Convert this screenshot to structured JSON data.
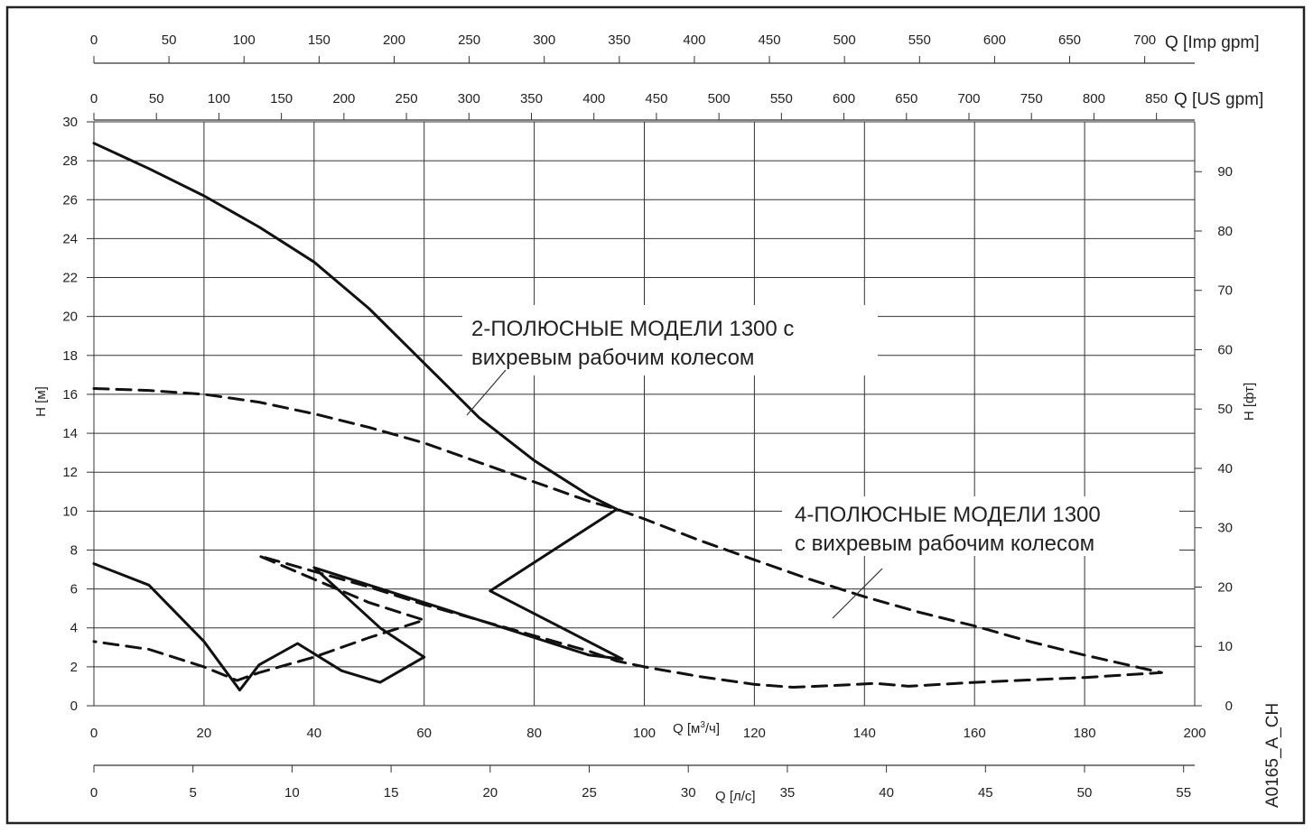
{
  "chart_data": {
    "type": "line",
    "image_code": "A0165_A_CH",
    "x_axis": {
      "label": "Q [м³/ч]",
      "label_main": "Q [м",
      "label_sup": "3",
      "label_tail": "/ч]",
      "range": [
        0,
        200
      ],
      "ticks": [
        0,
        20,
        40,
        60,
        80,
        100,
        120,
        140,
        160,
        180,
        200
      ]
    },
    "x_axis_ls": {
      "label": "Q [л/с]",
      "range": [
        0,
        55.56
      ],
      "ticks": [
        0,
        5,
        10,
        15,
        20,
        25,
        30,
        35,
        40,
        45,
        50,
        55
      ]
    },
    "x_axis_us": {
      "label": "Q [US gpm]",
      "range": [
        0,
        880.6
      ],
      "ticks": [
        0,
        50,
        100,
        150,
        200,
        250,
        300,
        350,
        400,
        450,
        500,
        550,
        600,
        650,
        700,
        750,
        800,
        850
      ]
    },
    "x_axis_imp": {
      "label": "Q [Imp gpm]",
      "range": [
        0,
        733.3
      ],
      "ticks": [
        0,
        50,
        100,
        150,
        200,
        250,
        300,
        350,
        400,
        450,
        500,
        550,
        600,
        650,
        700
      ]
    },
    "y_axis": {
      "label": "H [м]",
      "range": [
        0,
        30
      ],
      "ticks": [
        0,
        2,
        4,
        6,
        8,
        10,
        12,
        14,
        16,
        18,
        20,
        22,
        24,
        26,
        28,
        30
      ]
    },
    "y_axis_ft": {
      "label": "H [фт]",
      "range": [
        0,
        98.4
      ],
      "ticks": [
        0,
        10,
        20,
        30,
        40,
        50,
        60,
        70,
        80,
        90
      ]
    },
    "grid": true,
    "annotations": [
      {
        "lines": [
          "2-ПОЛЮСНЫЕ МОДЕЛИ 1300 с",
          "вихревым рабочим колесом"
        ]
      },
      {
        "lines": [
          "4-ПОЛЮСНЫЕ МОДЕЛИ 1300",
          "с вихревым рабочим колесом"
        ]
      }
    ],
    "series": [
      {
        "style": "solid",
        "points": [
          [
            0,
            28.9
          ],
          [
            10,
            27.6
          ],
          [
            20,
            26.2
          ],
          [
            30,
            24.6
          ],
          [
            40,
            22.8
          ],
          [
            50,
            20.4
          ],
          [
            60,
            17.6
          ],
          [
            70,
            14.8
          ],
          [
            80,
            12.6
          ],
          [
            90,
            10.8
          ],
          [
            95,
            10.1
          ],
          [
            72,
            5.9
          ],
          [
            96,
            2.4
          ],
          [
            90,
            2.6
          ],
          [
            80,
            3.5
          ],
          [
            70,
            4.4
          ],
          [
            60,
            5.3
          ],
          [
            50,
            6.2
          ],
          [
            40,
            7.1
          ],
          [
            52,
            4.0
          ],
          [
            60,
            2.5
          ],
          [
            52,
            1.2
          ],
          [
            45,
            1.8
          ],
          [
            37,
            3.2
          ],
          [
            30,
            2.1
          ],
          [
            26.5,
            0.8
          ],
          [
            20,
            3.3
          ],
          [
            10,
            6.2
          ],
          [
            0,
            7.3
          ]
        ]
      },
      {
        "style": "dashed",
        "points": [
          [
            0,
            16.3
          ],
          [
            10,
            16.2
          ],
          [
            20,
            16.0
          ],
          [
            30,
            15.6
          ],
          [
            40,
            15.0
          ],
          [
            50,
            14.3
          ],
          [
            60,
            13.5
          ],
          [
            70,
            12.5
          ],
          [
            80,
            11.5
          ],
          [
            90,
            10.5
          ],
          [
            95,
            10.1
          ],
          [
            100,
            9.6
          ],
          [
            110,
            8.5
          ],
          [
            120,
            7.5
          ],
          [
            130,
            6.5
          ],
          [
            140,
            5.6
          ],
          [
            150,
            4.8
          ],
          [
            160,
            4.1
          ],
          [
            170,
            3.3
          ],
          [
            180,
            2.6
          ],
          [
            194,
            1.7
          ],
          [
            180,
            1.45
          ],
          [
            160,
            1.2
          ],
          [
            148,
            1.0
          ],
          [
            142,
            1.15
          ],
          [
            135,
            1.05
          ],
          [
            127,
            0.95
          ],
          [
            120,
            1.1
          ],
          [
            110,
            1.5
          ],
          [
            100,
            2.0
          ],
          [
            95,
            2.3
          ],
          [
            90,
            2.8
          ],
          [
            80,
            3.6
          ],
          [
            70,
            4.4
          ],
          [
            60,
            5.2
          ],
          [
            50,
            6.1
          ],
          [
            40,
            6.9
          ],
          [
            30,
            7.7
          ],
          [
            40,
            6.5
          ],
          [
            50,
            5.3
          ],
          [
            60,
            4.4
          ],
          [
            50,
            3.5
          ],
          [
            40,
            2.5
          ],
          [
            30,
            1.7
          ],
          [
            26,
            1.3
          ],
          [
            20,
            2.0
          ],
          [
            10,
            2.9
          ],
          [
            0,
            3.3
          ]
        ]
      }
    ]
  }
}
